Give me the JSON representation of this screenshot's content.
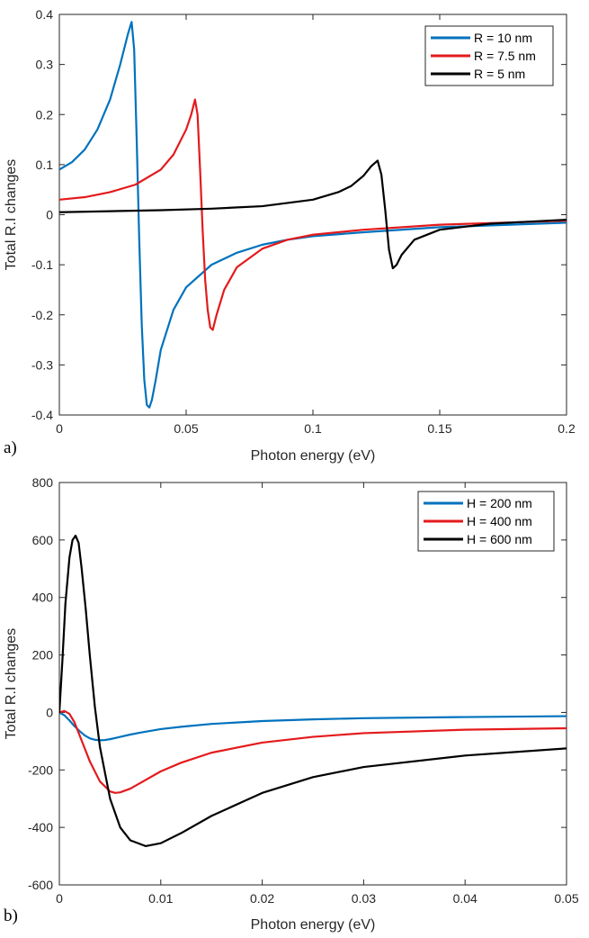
{
  "chart_data": [
    {
      "type": "line",
      "panel_label": "a)",
      "xlabel": "Photon energy (eV)",
      "ylabel": "Total R.I changes",
      "xlim": [
        0,
        0.2
      ],
      "ylim": [
        -0.4,
        0.4
      ],
      "xticks": [
        "0",
        "0.05",
        "0.1",
        "0.15",
        "0.2"
      ],
      "yticks": [
        "0.4",
        "0.3",
        "0.2",
        "0.1",
        "0",
        "-0.1",
        "-0.2",
        "-0.3",
        "-0.4"
      ],
      "grid": false,
      "legend_position": "top-right",
      "series": [
        {
          "name": "R = 10 nm",
          "color": "#0072BD",
          "x": [
            0,
            0.005,
            0.01,
            0.015,
            0.02,
            0.024,
            0.027,
            0.0285,
            0.0295,
            0.0305,
            0.0315,
            0.0325,
            0.0335,
            0.0345,
            0.0355,
            0.0365,
            0.038,
            0.04,
            0.045,
            0.05,
            0.06,
            0.07,
            0.08,
            0.09,
            0.1,
            0.12,
            0.15,
            0.2
          ],
          "y": [
            0.09,
            0.105,
            0.13,
            0.17,
            0.23,
            0.3,
            0.36,
            0.385,
            0.33,
            0.15,
            -0.05,
            -0.22,
            -0.33,
            -0.38,
            -0.385,
            -0.37,
            -0.33,
            -0.27,
            -0.19,
            -0.145,
            -0.1,
            -0.076,
            -0.06,
            -0.05,
            -0.043,
            -0.035,
            -0.025,
            -0.016
          ]
        },
        {
          "name": "R = 7.5 nm",
          "color": "#E41A1C",
          "x": [
            0,
            0.01,
            0.02,
            0.03,
            0.04,
            0.045,
            0.05,
            0.052,
            0.0535,
            0.0545,
            0.0555,
            0.0565,
            0.0575,
            0.0585,
            0.0595,
            0.0605,
            0.062,
            0.065,
            0.07,
            0.08,
            0.09,
            0.1,
            0.12,
            0.15,
            0.2
          ],
          "y": [
            0.03,
            0.035,
            0.045,
            0.06,
            0.09,
            0.12,
            0.17,
            0.2,
            0.23,
            0.2,
            0.09,
            -0.03,
            -0.13,
            -0.19,
            -0.225,
            -0.23,
            -0.2,
            -0.15,
            -0.105,
            -0.068,
            -0.05,
            -0.04,
            -0.03,
            -0.02,
            -0.012
          ]
        },
        {
          "name": "R = 5 nm",
          "color": "#000000",
          "x": [
            0,
            0.02,
            0.04,
            0.06,
            0.08,
            0.1,
            0.11,
            0.115,
            0.12,
            0.123,
            0.1255,
            0.127,
            0.1285,
            0.13,
            0.1315,
            0.133,
            0.135,
            0.14,
            0.15,
            0.17,
            0.2
          ],
          "y": [
            0.005,
            0.007,
            0.009,
            0.012,
            0.017,
            0.03,
            0.045,
            0.057,
            0.078,
            0.097,
            0.108,
            0.08,
            0.01,
            -0.07,
            -0.107,
            -0.1,
            -0.08,
            -0.05,
            -0.03,
            -0.018,
            -0.01
          ]
        }
      ]
    },
    {
      "type": "line",
      "panel_label": "b)",
      "xlabel": "Photon energy (eV)",
      "ylabel": "Total R.I changes",
      "xlim": [
        0,
        0.05
      ],
      "ylim": [
        -600,
        800
      ],
      "xticks": [
        "0",
        "0.01",
        "0.02",
        "0.03",
        "0.04",
        "0.05"
      ],
      "yticks": [
        "800",
        "600",
        "400",
        "200",
        "0",
        "-200",
        "-400",
        "-600"
      ],
      "grid": false,
      "legend_position": "top-right",
      "series": [
        {
          "name": "H = 200 nm",
          "color": "#0072BD",
          "x": [
            0,
            0.0005,
            0.001,
            0.0015,
            0.002,
            0.0025,
            0.003,
            0.0035,
            0.004,
            0.0045,
            0.005,
            0.006,
            0.007,
            0.008,
            0.01,
            0.012,
            0.015,
            0.02,
            0.025,
            0.03,
            0.04,
            0.05
          ],
          "y": [
            0,
            -10,
            -28,
            -48,
            -65,
            -80,
            -90,
            -95,
            -97,
            -96,
            -93,
            -85,
            -77,
            -70,
            -58,
            -50,
            -40,
            -30,
            -24,
            -20,
            -16,
            -13
          ]
        },
        {
          "name": "H = 400 nm",
          "color": "#E41A1C",
          "x": [
            0,
            0.0005,
            0.001,
            0.0015,
            0.002,
            0.003,
            0.004,
            0.005,
            0.0055,
            0.006,
            0.007,
            0.008,
            0.01,
            0.012,
            0.015,
            0.02,
            0.025,
            0.03,
            0.04,
            0.05
          ],
          "y": [
            0,
            5,
            -5,
            -35,
            -80,
            -170,
            -240,
            -275,
            -280,
            -278,
            -265,
            -245,
            -205,
            -175,
            -140,
            -105,
            -85,
            -72,
            -60,
            -55
          ]
        },
        {
          "name": "H = 600 nm",
          "color": "#000000",
          "x": [
            0,
            0.0003,
            0.0006,
            0.001,
            0.0013,
            0.0016,
            0.0019,
            0.0022,
            0.0026,
            0.003,
            0.0035,
            0.004,
            0.005,
            0.006,
            0.007,
            0.0085,
            0.01,
            0.012,
            0.015,
            0.02,
            0.025,
            0.03,
            0.04,
            0.05
          ],
          "y": [
            0,
            180,
            380,
            540,
            600,
            615,
            590,
            500,
            360,
            200,
            20,
            -120,
            -300,
            -400,
            -445,
            -465,
            -455,
            -420,
            -360,
            -280,
            -225,
            -190,
            -150,
            -125
          ]
        }
      ]
    }
  ]
}
